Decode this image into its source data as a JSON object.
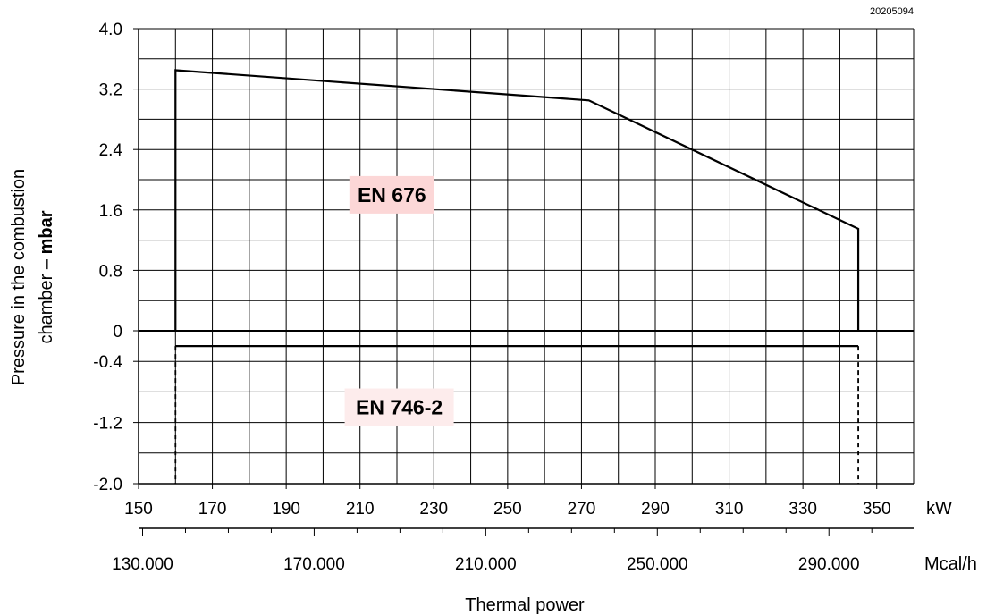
{
  "chart_data": {
    "type": "line",
    "code": "20205094",
    "ylabel_line1": "Pressure in the combustion",
    "ylabel_line2_prefix": "chamber – ",
    "ylabel_line2_unit": "mbar",
    "xlabel": "Thermal power",
    "x_unit_primary": "kW",
    "x_unit_secondary": "Mcal/h",
    "xlim": [
      150,
      360
    ],
    "x_ticks": [
      "150",
      "170",
      "190",
      "210",
      "230",
      "250",
      "270",
      "290",
      "310",
      "330",
      "350"
    ],
    "x_tick_values": [
      150,
      170,
      190,
      210,
      230,
      250,
      270,
      290,
      310,
      330,
      350
    ],
    "x2_ticks": [
      "130.000",
      "170.000",
      "210.000",
      "250.000",
      "290.000"
    ],
    "x2_tick_values": [
      130000,
      170000,
      210000,
      250000,
      290000
    ],
    "y_ticks": [
      "4.0",
      "3.2",
      "2.4",
      "1.6",
      "0.8",
      "0",
      "-0.4",
      "-1.2",
      "-2.0"
    ],
    "y_tick_values": [
      4.0,
      3.2,
      2.4,
      1.6,
      0.8,
      0,
      -0.4,
      -1.2,
      -2.0
    ],
    "ylim": [
      -2.0,
      4.0
    ],
    "grid": true,
    "series": [
      {
        "values_x": [
          160,
          160,
          272,
          345,
          345
        ],
        "values_y": [
          0,
          3.45,
          3.05,
          1.35,
          0
        ]
      },
      {
        "values_x": [
          160,
          345
        ],
        "values_y": [
          -0.2,
          -0.2
        ]
      }
    ],
    "limit_lines_x": [
      160,
      345
    ],
    "regions": [
      {
        "label": "EN 676",
        "x": 207,
        "y": 1.8,
        "bg": "#fcd7d7"
      },
      {
        "label": "EN 746-2",
        "x": 209,
        "y": -1.0,
        "bg": "#fdecec"
      }
    ]
  }
}
